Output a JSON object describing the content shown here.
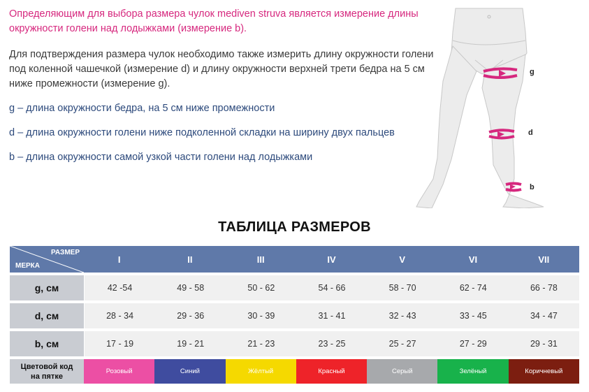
{
  "intro": {
    "p1": "Определяющим для выбора размера чулок mediven struva является измерение длины окружности голени над лодыжками (измерение b).",
    "p2": "Для подтверждения размера чулок необходимо также измерить длину окружности голени под коленной чашечкой (измерение d) и длину окружности верхней трети бедра на 5 см ниже промежности (измерение g).",
    "g": "g – длина окружности бедра, на 5 см ниже промежности",
    "d": "d – длина окружности голени ниже подколенной складки на ширину двух пальцев",
    "b": "b – длина окружности самой узкой части голени над лодыжками"
  },
  "diagram": {
    "label_g": "g",
    "label_d": "d",
    "label_b": "b",
    "marker_color": "#d6287e"
  },
  "table": {
    "title": "ТАБЛИЦА РАЗМЕРОВ",
    "corner_size": "РАЗМЕР",
    "corner_measure": "МЕРКА",
    "sizes": [
      "I",
      "II",
      "III",
      "IV",
      "V",
      "VI",
      "VII"
    ],
    "rows": [
      {
        "label": "g, см",
        "values": [
          "42 -54",
          "49 - 58",
          "50 - 62",
          "54 - 66",
          "58 - 70",
          "62 - 74",
          "66 - 78"
        ]
      },
      {
        "label": "d, см",
        "values": [
          "28 - 34",
          "29 - 36",
          "30 - 39",
          "31 - 41",
          "32 - 43",
          "33 - 45",
          "34 - 47"
        ]
      },
      {
        "label": "b, см",
        "values": [
          "17 - 19",
          "19 - 21",
          "21 - 23",
          "23 - 25",
          "25 - 27",
          "27 - 29",
          "29 - 31"
        ]
      }
    ],
    "color_label_1": "Цветовой код",
    "color_label_2": "на пятке",
    "colors": [
      {
        "name": "Розовый",
        "hex": "#ec4fa4"
      },
      {
        "name": "Синий",
        "hex": "#3f4c9f"
      },
      {
        "name": "Жёлтый",
        "hex": "#f5d900"
      },
      {
        "name": "Красный",
        "hex": "#ee2329"
      },
      {
        "name": "Серый",
        "hex": "#a7a9ac"
      },
      {
        "name": "Зелёный",
        "hex": "#18b24b"
      },
      {
        "name": "Коричневый",
        "hex": "#7c1e10"
      }
    ]
  }
}
